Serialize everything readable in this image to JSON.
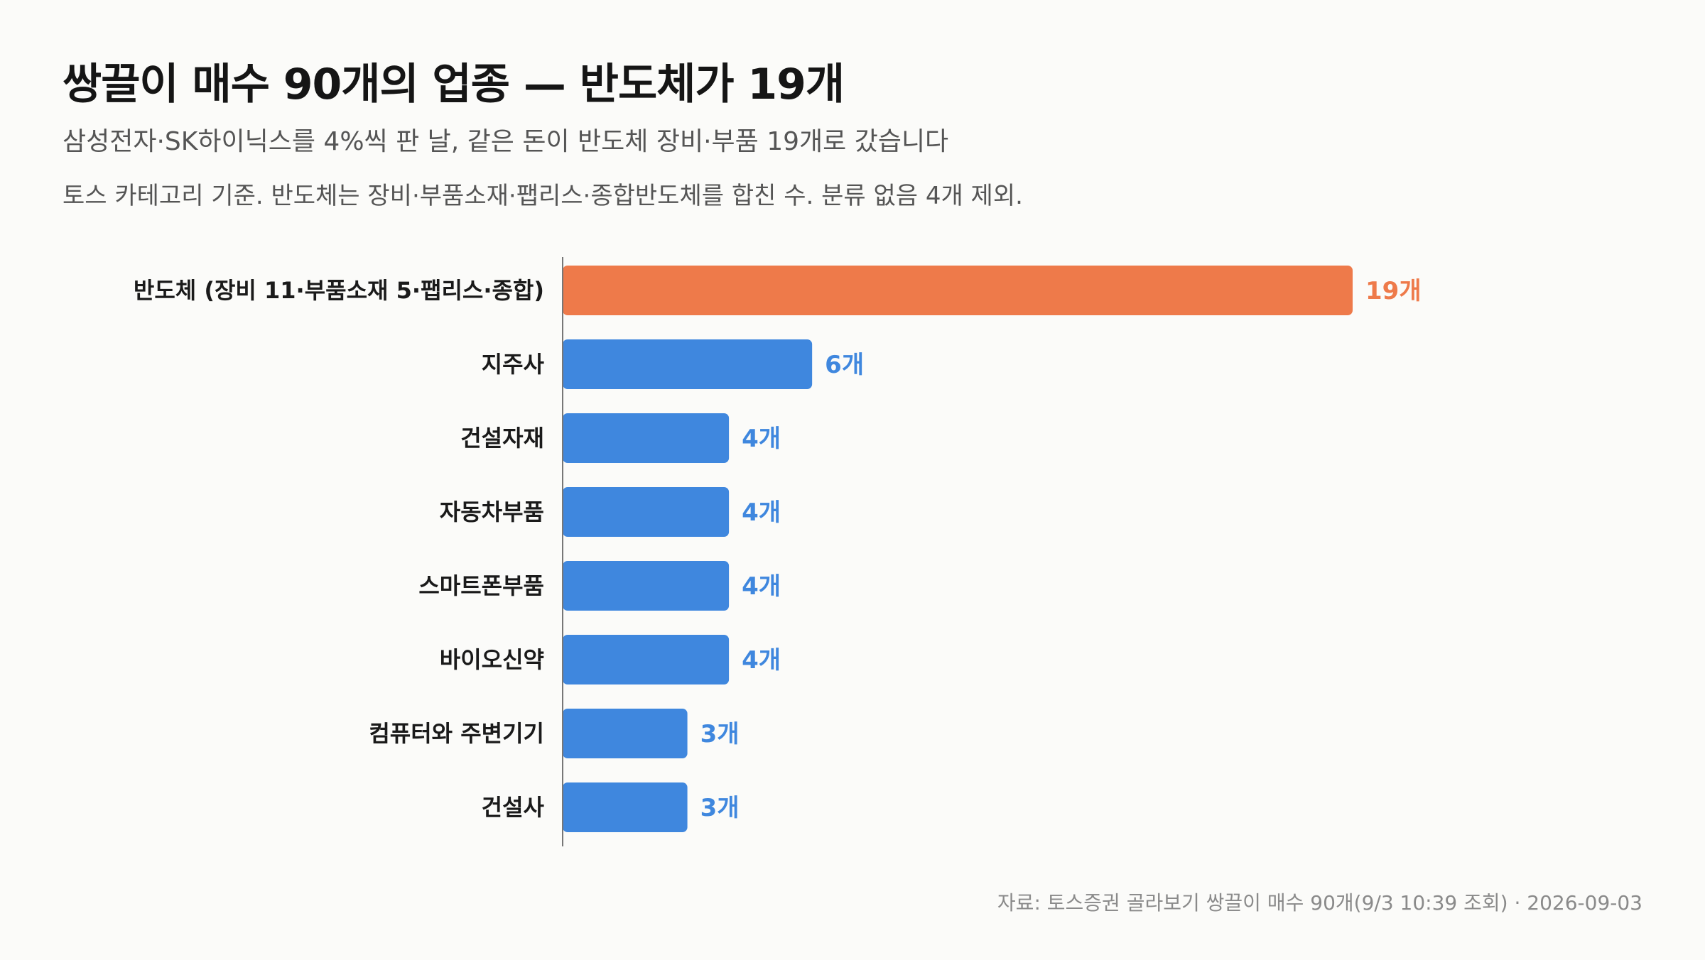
{
  "title": "쌍끌이 매수 90개의 업종 — 반도체가 19개",
  "subtitle": "삼성전자·SK하이닉스를 4%씩 판 날, 같은 돈이 반도체 장비·부품 19개로 갔습니다",
  "note": "토스 카테고리 기준. 반도체는 장비·부품소재·팹리스·종합반도체를 합친 수. 분류 없음 4개 제외.",
  "source": "자료: 토스증권 골라보기 쌍끌이 매수 90개(9/3 10:39 조회) · 2026-09-03",
  "colors": {
    "highlight": "#ee7a4a",
    "bar": "#3f87de"
  },
  "chart_data": {
    "type": "bar",
    "orientation": "horizontal",
    "categories": [
      "반도체 (장비 11·부품소재 5·팹리스·종합)",
      "지주사",
      "건설자재",
      "자동차부품",
      "스마트폰부품",
      "바이오신약",
      "컴퓨터와 주변기기",
      "건설사"
    ],
    "values": [
      19,
      6,
      4,
      4,
      4,
      4,
      3,
      3
    ],
    "value_labels": [
      "19개",
      "6개",
      "4개",
      "4개",
      "4개",
      "4개",
      "3개",
      "3개"
    ],
    "highlight_index": 0,
    "xlim": [
      0,
      19
    ],
    "grid": false,
    "legend": "none"
  }
}
